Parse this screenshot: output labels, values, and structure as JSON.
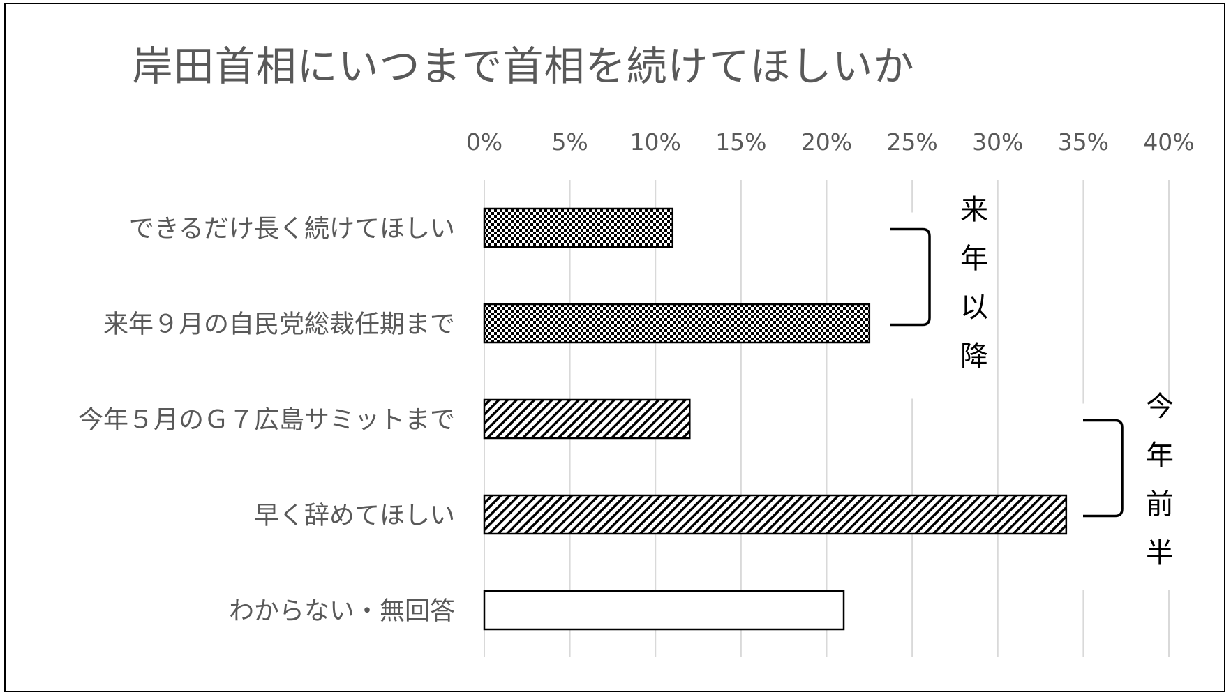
{
  "chart_data": {
    "type": "bar",
    "orientation": "horizontal",
    "title": "岸田首相にいつまで首相を続けてほしいか",
    "categories": [
      "できるだけ長く続けてほしい",
      "来年９月の自民党総裁任期まで",
      "今年５月のＧ７広島サミットまで",
      "早く辞めてほしい",
      "わからない・無回答"
    ],
    "values": [
      11,
      22.5,
      12,
      34,
      21
    ],
    "patterns": [
      "checker",
      "checker",
      "diagonal",
      "diagonal",
      "none"
    ],
    "xlim": [
      0,
      40
    ],
    "xticks": [
      "0%",
      "5%",
      "10%",
      "15%",
      "20%",
      "25%",
      "30%",
      "35%",
      "40%"
    ],
    "axis_position": "top",
    "grid": true,
    "groups": [
      {
        "label": [
          "来",
          "年",
          "以",
          "降"
        ],
        "members": [
          0,
          1
        ]
      },
      {
        "label": [
          "今",
          "年",
          "前",
          "半"
        ],
        "members": [
          2,
          3
        ]
      }
    ],
    "colors": {
      "text": "#595959",
      "grid": "#d9d9d9",
      "bar_edge": "#000000",
      "pattern": "#000000"
    }
  }
}
